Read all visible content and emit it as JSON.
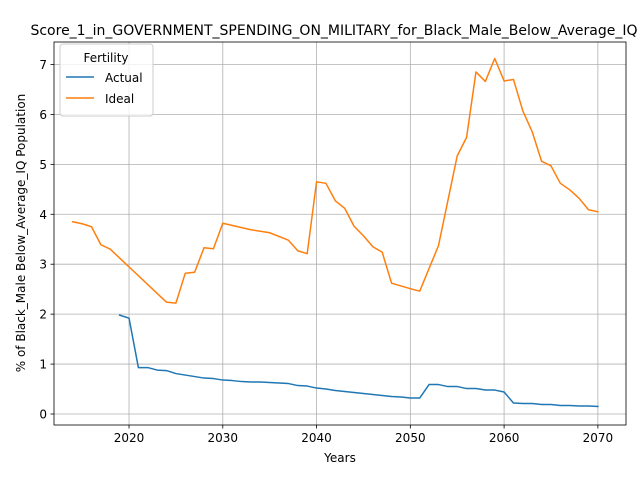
{
  "chart_data": {
    "type": "line",
    "title": "Score_1_in_GOVERNMENT_SPENDING_ON_MILITARY_for_Black_Male_Below_Average_IQ",
    "xlabel": "Years",
    "ylabel": "% of Black_Male Below_Average_IQ Population",
    "xlim": [
      2012,
      2073
    ],
    "ylim": [
      -0.22,
      7.45
    ],
    "x_ticks": [
      2020,
      2030,
      2040,
      2050,
      2060,
      2070
    ],
    "y_ticks": [
      0,
      1,
      2,
      3,
      4,
      5,
      6,
      7
    ],
    "grid": true,
    "legend": {
      "title": "Fertility",
      "position": "top-left"
    },
    "series": [
      {
        "name": "Actual",
        "color": "#1f77b4",
        "points": [
          [
            2019,
            1.98
          ],
          [
            2020,
            1.92
          ],
          [
            2021,
            0.93
          ],
          [
            2022,
            0.93
          ],
          [
            2023,
            0.88
          ],
          [
            2024,
            0.87
          ],
          [
            2025,
            0.81
          ],
          [
            2026,
            0.78
          ],
          [
            2027,
            0.75
          ],
          [
            2028,
            0.72
          ],
          [
            2029,
            0.71
          ],
          [
            2030,
            0.68
          ],
          [
            2031,
            0.67
          ],
          [
            2032,
            0.65
          ],
          [
            2033,
            0.64
          ],
          [
            2034,
            0.64
          ],
          [
            2035,
            0.63
          ],
          [
            2036,
            0.62
          ],
          [
            2037,
            0.61
          ],
          [
            2038,
            0.57
          ],
          [
            2039,
            0.56
          ],
          [
            2040,
            0.52
          ],
          [
            2041,
            0.5
          ],
          [
            2042,
            0.47
          ],
          [
            2043,
            0.45
          ],
          [
            2044,
            0.43
          ],
          [
            2045,
            0.41
          ],
          [
            2046,
            0.39
          ],
          [
            2047,
            0.37
          ],
          [
            2048,
            0.35
          ],
          [
            2049,
            0.34
          ],
          [
            2050,
            0.32
          ],
          [
            2051,
            0.32
          ],
          [
            2052,
            0.59
          ],
          [
            2053,
            0.59
          ],
          [
            2054,
            0.55
          ],
          [
            2055,
            0.55
          ],
          [
            2056,
            0.51
          ],
          [
            2057,
            0.51
          ],
          [
            2058,
            0.48
          ],
          [
            2059,
            0.48
          ],
          [
            2060,
            0.44
          ],
          [
            2061,
            0.22
          ],
          [
            2062,
            0.21
          ],
          [
            2063,
            0.21
          ],
          [
            2064,
            0.19
          ],
          [
            2065,
            0.19
          ],
          [
            2066,
            0.17
          ],
          [
            2067,
            0.17
          ],
          [
            2068,
            0.16
          ],
          [
            2069,
            0.16
          ],
          [
            2070,
            0.15
          ]
        ]
      },
      {
        "name": "Ideal",
        "color": "#ff7f0e",
        "points": [
          [
            2014,
            3.85
          ],
          [
            2015,
            3.81
          ],
          [
            2016,
            3.75
          ],
          [
            2017,
            3.39
          ],
          [
            2018,
            3.3
          ],
          [
            2024,
            2.24
          ],
          [
            2025,
            2.22
          ],
          [
            2026,
            2.82
          ],
          [
            2027,
            2.84
          ],
          [
            2028,
            3.33
          ],
          [
            2029,
            3.31
          ],
          [
            2030,
            3.82
          ],
          [
            2033,
            3.69
          ],
          [
            2035,
            3.63
          ],
          [
            2037,
            3.48
          ],
          [
            2038,
            3.27
          ],
          [
            2039,
            3.21
          ],
          [
            2040,
            4.65
          ],
          [
            2041,
            4.62
          ],
          [
            2042,
            4.27
          ],
          [
            2043,
            4.12
          ],
          [
            2044,
            3.76
          ],
          [
            2045,
            3.57
          ],
          [
            2046,
            3.35
          ],
          [
            2047,
            3.24
          ],
          [
            2048,
            2.62
          ],
          [
            2050,
            2.51
          ],
          [
            2051,
            2.46
          ],
          [
            2053,
            3.37
          ],
          [
            2054,
            4.27
          ],
          [
            2055,
            5.17
          ],
          [
            2056,
            5.54
          ],
          [
            2057,
            6.85
          ],
          [
            2058,
            6.66
          ],
          [
            2059,
            7.12
          ],
          [
            2060,
            6.67
          ],
          [
            2061,
            6.7
          ],
          [
            2062,
            6.07
          ],
          [
            2063,
            5.65
          ],
          [
            2064,
            5.06
          ],
          [
            2065,
            4.97
          ],
          [
            2066,
            4.62
          ],
          [
            2067,
            4.49
          ],
          [
            2068,
            4.32
          ],
          [
            2069,
            4.09
          ],
          [
            2070,
            4.05
          ]
        ]
      }
    ]
  }
}
